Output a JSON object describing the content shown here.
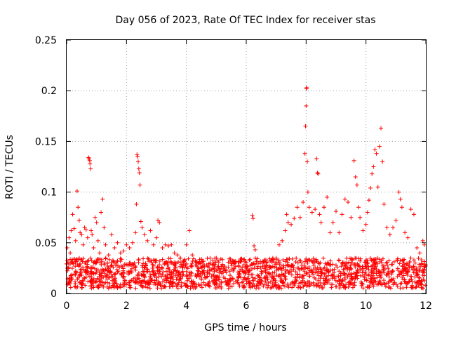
{
  "chart_data": {
    "type": "scatter",
    "title": "Day 056 of 2023, Rate Of TEC Index for receiver stas",
    "xlabel": "GPS time / hours",
    "ylabel": "ROTI / TECUs",
    "xlim": [
      0,
      12
    ],
    "ylim": [
      0,
      0.25
    ],
    "xticks": [
      0,
      2,
      4,
      6,
      8,
      10,
      12
    ],
    "xtick_labels": [
      "0",
      "2",
      "4",
      "6",
      "8",
      "10",
      "12"
    ],
    "yticks": [
      0,
      0.05,
      0.1,
      0.15,
      0.2,
      0.25
    ],
    "ytick_labels": [
      "0",
      "0.05",
      "0.1",
      "0.15",
      "0.2",
      "0.25"
    ],
    "grid": true,
    "marker": "+",
    "color": "#ff0000",
    "series": [
      {
        "name": "ROTI",
        "points": [
          [
            0.02,
            0.045
          ],
          [
            0.05,
            0.03
          ],
          [
            0.08,
            0.055
          ],
          [
            0.12,
            0.04
          ],
          [
            0.15,
            0.062
          ],
          [
            0.2,
            0.078
          ],
          [
            0.25,
            0.064
          ],
          [
            0.3,
            0.052
          ],
          [
            0.35,
            0.101
          ],
          [
            0.38,
            0.085
          ],
          [
            0.42,
            0.072
          ],
          [
            0.45,
            0.06
          ],
          [
            0.5,
            0.058
          ],
          [
            0.55,
            0.048
          ],
          [
            0.6,
            0.065
          ],
          [
            0.65,
            0.063
          ],
          [
            0.7,
            0.055
          ],
          [
            0.73,
            0.134
          ],
          [
            0.75,
            0.133
          ],
          [
            0.77,
            0.131
          ],
          [
            0.78,
            0.128
          ],
          [
            0.8,
            0.123
          ],
          [
            0.82,
            0.062
          ],
          [
            0.85,
            0.058
          ],
          [
            0.9,
            0.045
          ],
          [
            0.95,
            0.075
          ],
          [
            1.0,
            0.07
          ],
          [
            1.05,
            0.052
          ],
          [
            1.1,
            0.04
          ],
          [
            1.15,
            0.08
          ],
          [
            1.2,
            0.093
          ],
          [
            1.25,
            0.065
          ],
          [
            1.3,
            0.048
          ],
          [
            1.4,
            0.038
          ],
          [
            1.5,
            0.058
          ],
          [
            1.6,
            0.045
          ],
          [
            1.7,
            0.05
          ],
          [
            1.8,
            0.04
          ],
          [
            1.9,
            0.042
          ],
          [
            2.0,
            0.048
          ],
          [
            2.1,
            0.045
          ],
          [
            2.2,
            0.05
          ],
          [
            2.3,
            0.06
          ],
          [
            2.33,
            0.088
          ],
          [
            2.35,
            0.137
          ],
          [
            2.37,
            0.135
          ],
          [
            2.39,
            0.13
          ],
          [
            2.41,
            0.123
          ],
          [
            2.43,
            0.119
          ],
          [
            2.45,
            0.107
          ],
          [
            2.48,
            0.071
          ],
          [
            2.52,
            0.065
          ],
          [
            2.6,
            0.058
          ],
          [
            2.7,
            0.052
          ],
          [
            2.8,
            0.062
          ],
          [
            2.9,
            0.048
          ],
          [
            3.0,
            0.055
          ],
          [
            3.05,
            0.072
          ],
          [
            3.1,
            0.07
          ],
          [
            3.2,
            0.045
          ],
          [
            3.3,
            0.048
          ],
          [
            3.4,
            0.047
          ],
          [
            3.5,
            0.048
          ],
          [
            3.6,
            0.04
          ],
          [
            3.7,
            0.038
          ],
          [
            3.8,
            0.035
          ],
          [
            3.9,
            0.032
          ],
          [
            4.0,
            0.048
          ],
          [
            4.1,
            0.062
          ],
          [
            4.2,
            0.038
          ],
          [
            4.3,
            0.032
          ],
          [
            4.4,
            0.03
          ],
          [
            4.6,
            0.028
          ],
          [
            4.8,
            0.03
          ],
          [
            5.0,
            0.035
          ],
          [
            5.2,
            0.028
          ],
          [
            5.4,
            0.026
          ],
          [
            5.6,
            0.025
          ],
          [
            5.8,
            0.032
          ],
          [
            6.0,
            0.025
          ],
          [
            6.1,
            0.022
          ],
          [
            6.2,
            0.077
          ],
          [
            6.23,
            0.074
          ],
          [
            6.26,
            0.047
          ],
          [
            6.3,
            0.043
          ],
          [
            6.4,
            0.03
          ],
          [
            6.6,
            0.028
          ],
          [
            6.8,
            0.032
          ],
          [
            7.0,
            0.035
          ],
          [
            7.1,
            0.048
          ],
          [
            7.2,
            0.052
          ],
          [
            7.3,
            0.062
          ],
          [
            7.35,
            0.078
          ],
          [
            7.4,
            0.07
          ],
          [
            7.5,
            0.068
          ],
          [
            7.6,
            0.074
          ],
          [
            7.7,
            0.085
          ],
          [
            7.8,
            0.075
          ],
          [
            7.9,
            0.09
          ],
          [
            7.96,
            0.138
          ],
          [
            7.98,
            0.165
          ],
          [
            8.0,
            0.185
          ],
          [
            8.01,
            0.202
          ],
          [
            8.02,
            0.203
          ],
          [
            8.04,
            0.13
          ],
          [
            8.06,
            0.1
          ],
          [
            8.1,
            0.085
          ],
          [
            8.2,
            0.08
          ],
          [
            8.3,
            0.083
          ],
          [
            8.35,
            0.133
          ],
          [
            8.38,
            0.119
          ],
          [
            8.4,
            0.118
          ],
          [
            8.45,
            0.078
          ],
          [
            8.5,
            0.07
          ],
          [
            8.6,
            0.085
          ],
          [
            8.7,
            0.095
          ],
          [
            8.8,
            0.06
          ],
          [
            8.9,
            0.07
          ],
          [
            9.0,
            0.081
          ],
          [
            9.1,
            0.06
          ],
          [
            9.2,
            0.078
          ],
          [
            9.3,
            0.093
          ],
          [
            9.4,
            0.09
          ],
          [
            9.5,
            0.075
          ],
          [
            9.6,
            0.131
          ],
          [
            9.65,
            0.115
          ],
          [
            9.7,
            0.107
          ],
          [
            9.75,
            0.085
          ],
          [
            9.8,
            0.075
          ],
          [
            9.9,
            0.062
          ],
          [
            10.0,
            0.068
          ],
          [
            10.05,
            0.08
          ],
          [
            10.1,
            0.092
          ],
          [
            10.15,
            0.104
          ],
          [
            10.2,
            0.118
          ],
          [
            10.25,
            0.125
          ],
          [
            10.3,
            0.142
          ],
          [
            10.35,
            0.138
          ],
          [
            10.4,
            0.105
          ],
          [
            10.45,
            0.145
          ],
          [
            10.5,
            0.163
          ],
          [
            10.55,
            0.13
          ],
          [
            10.6,
            0.088
          ],
          [
            10.7,
            0.065
          ],
          [
            10.8,
            0.058
          ],
          [
            10.9,
            0.065
          ],
          [
            11.0,
            0.072
          ],
          [
            11.1,
            0.1
          ],
          [
            11.15,
            0.093
          ],
          [
            11.2,
            0.085
          ],
          [
            11.3,
            0.06
          ],
          [
            11.4,
            0.055
          ],
          [
            11.5,
            0.083
          ],
          [
            11.6,
            0.078
          ],
          [
            11.7,
            0.045
          ],
          [
            11.8,
            0.04
          ],
          [
            11.9,
            0.052
          ],
          [
            11.95,
            0.048
          ],
          [
            0.1,
            0.015
          ],
          [
            0.3,
            0.022
          ],
          [
            0.5,
            0.018
          ],
          [
            0.7,
            0.025
          ],
          [
            0.9,
            0.02
          ],
          [
            1.1,
            0.019
          ],
          [
            1.3,
            0.024
          ],
          [
            1.5,
            0.017
          ],
          [
            1.7,
            0.021
          ],
          [
            1.9,
            0.016
          ],
          [
            2.1,
            0.02
          ],
          [
            2.3,
            0.023
          ],
          [
            2.5,
            0.018
          ],
          [
            2.7,
            0.024
          ],
          [
            2.9,
            0.019
          ],
          [
            3.1,
            0.022
          ],
          [
            3.3,
            0.017
          ],
          [
            3.5,
            0.021
          ],
          [
            3.7,
            0.016
          ],
          [
            3.9,
            0.019
          ],
          [
            4.1,
            0.015
          ],
          [
            4.3,
            0.018
          ],
          [
            4.5,
            0.014
          ],
          [
            4.7,
            0.017
          ],
          [
            4.9,
            0.013
          ],
          [
            5.1,
            0.016
          ],
          [
            5.3,
            0.012
          ],
          [
            5.5,
            0.015
          ],
          [
            5.7,
            0.013
          ],
          [
            5.9,
            0.014
          ],
          [
            6.1,
            0.012
          ],
          [
            6.3,
            0.015
          ],
          [
            6.5,
            0.013
          ],
          [
            6.7,
            0.016
          ],
          [
            6.9,
            0.014
          ],
          [
            7.1,
            0.018
          ],
          [
            7.3,
            0.02
          ],
          [
            7.5,
            0.022
          ],
          [
            7.7,
            0.019
          ],
          [
            7.9,
            0.024
          ],
          [
            8.1,
            0.021
          ],
          [
            8.3,
            0.025
          ],
          [
            8.5,
            0.02
          ],
          [
            8.7,
            0.023
          ],
          [
            8.9,
            0.019
          ],
          [
            9.1,
            0.022
          ],
          [
            9.3,
            0.018
          ],
          [
            9.5,
            0.024
          ],
          [
            9.7,
            0.02
          ],
          [
            9.9,
            0.023
          ],
          [
            10.1,
            0.019
          ],
          [
            10.3,
            0.025
          ],
          [
            10.5,
            0.021
          ],
          [
            10.7,
            0.018
          ],
          [
            10.9,
            0.022
          ],
          [
            11.1,
            0.019
          ],
          [
            11.3,
            0.024
          ],
          [
            11.5,
            0.017
          ],
          [
            11.7,
            0.021
          ],
          [
            11.9,
            0.018
          ]
        ]
      }
    ],
    "background_band": {
      "description": "dense baseline of ROTI values",
      "x_range": [
        0,
        12
      ],
      "y_band": [
        0.005,
        0.035
      ]
    }
  }
}
